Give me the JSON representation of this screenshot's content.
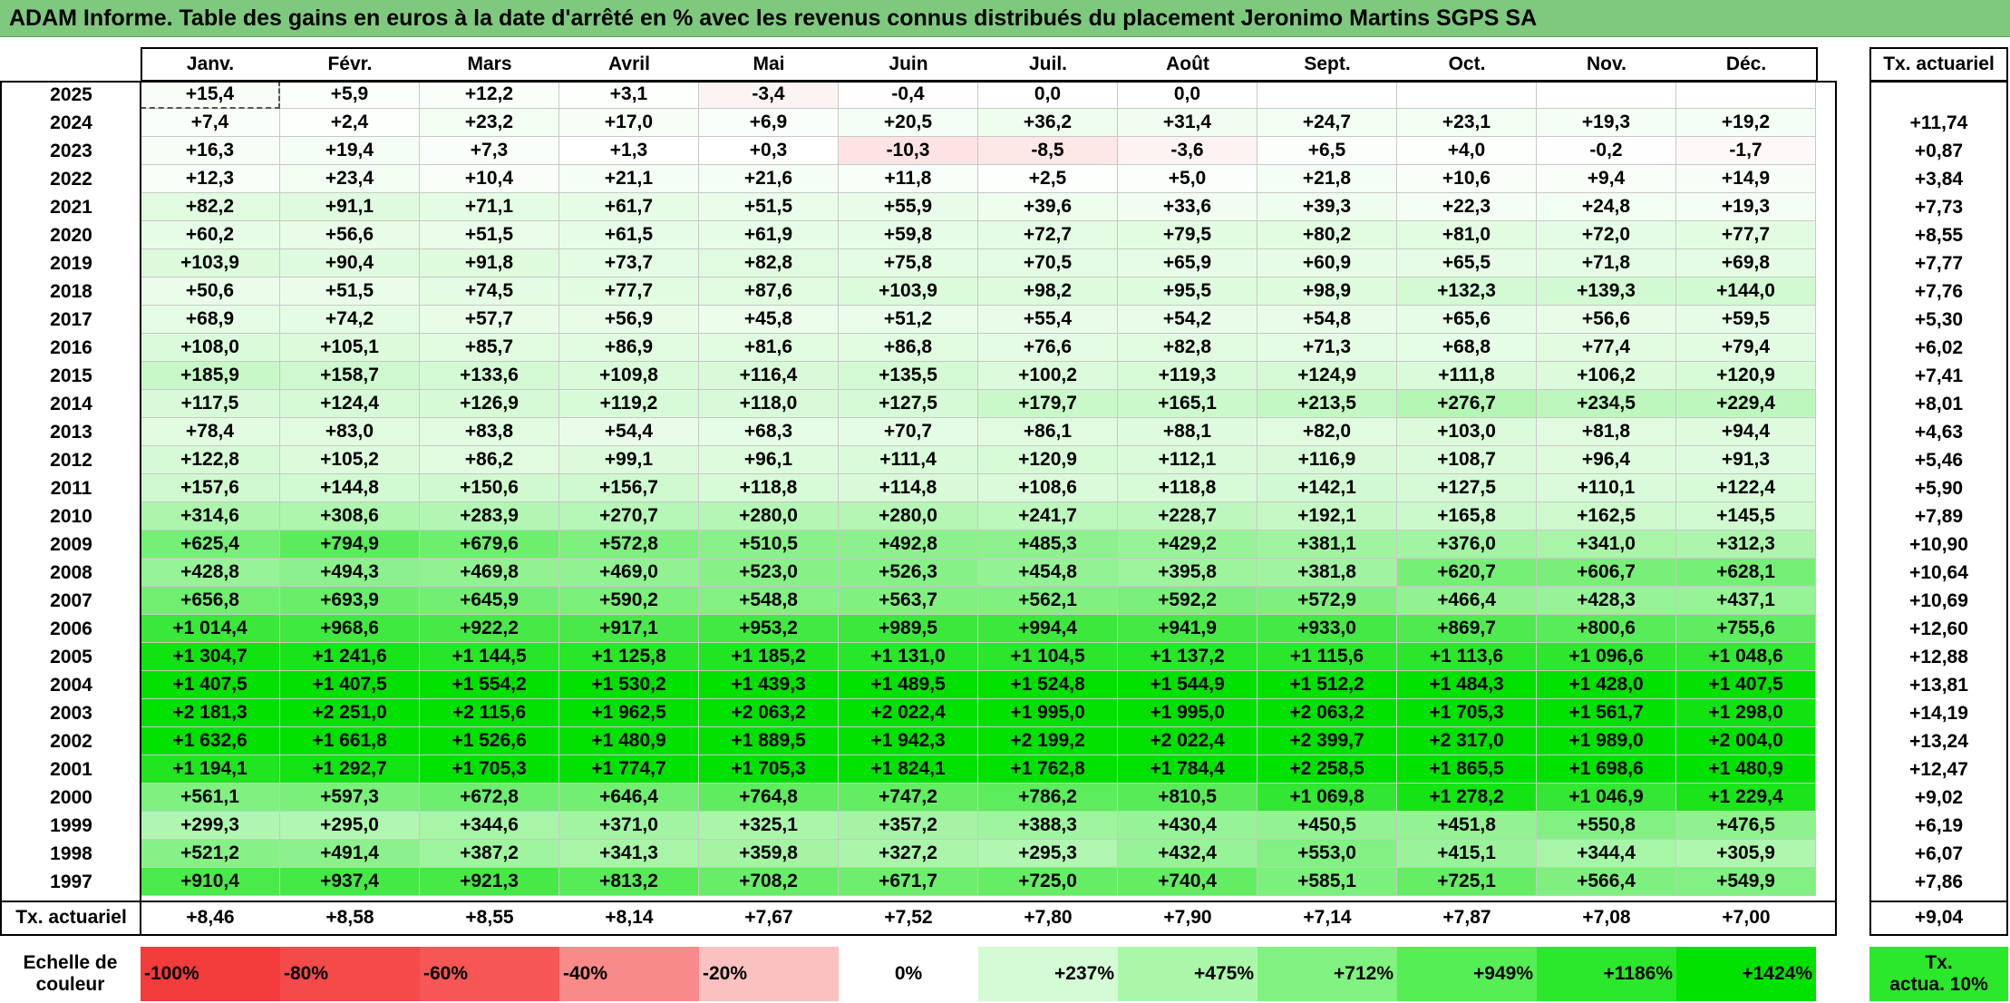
{
  "title": "ADAM Informe. Table des gains en euros à la date d'arrêté en % avec les revenus connus distribués du placement Jeronimo Martins SGPS SA",
  "chart_data": {
    "type": "table",
    "columns": [
      "Janv.",
      "Févr.",
      "Mars",
      "Avril",
      "Mai",
      "Juin",
      "Juil.",
      "Août",
      "Sept.",
      "Oct.",
      "Nov.",
      "Déc."
    ],
    "rate_header": "Tx. actuariel",
    "rows": [
      {
        "year": "2025",
        "values": [
          "+15,4",
          "+5,9",
          "+12,2",
          "+3,1",
          "-3,4",
          "-0,4",
          "0,0",
          "0,0",
          "",
          "",
          "",
          ""
        ],
        "rate": ""
      },
      {
        "year": "2024",
        "values": [
          "+7,4",
          "+2,4",
          "+23,2",
          "+17,0",
          "+6,9",
          "+20,5",
          "+36,2",
          "+31,4",
          "+24,7",
          "+23,1",
          "+19,3",
          "+19,2"
        ],
        "rate": "+11,74"
      },
      {
        "year": "2023",
        "values": [
          "+16,3",
          "+19,4",
          "+7,3",
          "+1,3",
          "+0,3",
          "-10,3",
          "-8,5",
          "-3,6",
          "+6,5",
          "+4,0",
          "-0,2",
          "-1,7"
        ],
        "rate": "+0,87"
      },
      {
        "year": "2022",
        "values": [
          "+12,3",
          "+23,4",
          "+10,4",
          "+21,1",
          "+21,6",
          "+11,8",
          "+2,5",
          "+5,0",
          "+21,8",
          "+10,6",
          "+9,4",
          "+14,9"
        ],
        "rate": "+3,84"
      },
      {
        "year": "2021",
        "values": [
          "+82,2",
          "+91,1",
          "+71,1",
          "+61,7",
          "+51,5",
          "+55,9",
          "+39,6",
          "+33,6",
          "+39,3",
          "+22,3",
          "+24,8",
          "+19,3"
        ],
        "rate": "+7,73"
      },
      {
        "year": "2020",
        "values": [
          "+60,2",
          "+56,6",
          "+51,5",
          "+61,5",
          "+61,9",
          "+59,8",
          "+72,7",
          "+79,5",
          "+80,2",
          "+81,0",
          "+72,0",
          "+77,7"
        ],
        "rate": "+8,55"
      },
      {
        "year": "2019",
        "values": [
          "+103,9",
          "+90,4",
          "+91,8",
          "+73,7",
          "+82,8",
          "+75,8",
          "+70,5",
          "+65,9",
          "+60,9",
          "+65,5",
          "+71,8",
          "+69,8"
        ],
        "rate": "+7,77"
      },
      {
        "year": "2018",
        "values": [
          "+50,6",
          "+51,5",
          "+74,5",
          "+77,7",
          "+87,6",
          "+103,9",
          "+98,2",
          "+95,5",
          "+98,9",
          "+132,3",
          "+139,3",
          "+144,0"
        ],
        "rate": "+7,76"
      },
      {
        "year": "2017",
        "values": [
          "+68,9",
          "+74,2",
          "+57,7",
          "+56,9",
          "+45,8",
          "+51,2",
          "+55,4",
          "+54,2",
          "+54,8",
          "+65,6",
          "+56,6",
          "+59,5"
        ],
        "rate": "+5,30"
      },
      {
        "year": "2016",
        "values": [
          "+108,0",
          "+105,1",
          "+85,7",
          "+86,9",
          "+81,6",
          "+86,8",
          "+76,6",
          "+82,8",
          "+71,3",
          "+68,8",
          "+77,4",
          "+79,4"
        ],
        "rate": "+6,02"
      },
      {
        "year": "2015",
        "values": [
          "+185,9",
          "+158,7",
          "+133,6",
          "+109,8",
          "+116,4",
          "+135,5",
          "+100,2",
          "+119,3",
          "+124,9",
          "+111,8",
          "+106,2",
          "+120,9"
        ],
        "rate": "+7,41"
      },
      {
        "year": "2014",
        "values": [
          "+117,5",
          "+124,4",
          "+126,9",
          "+119,2",
          "+118,0",
          "+127,5",
          "+179,7",
          "+165,1",
          "+213,5",
          "+276,7",
          "+234,5",
          "+229,4"
        ],
        "rate": "+8,01"
      },
      {
        "year": "2013",
        "values": [
          "+78,4",
          "+83,0",
          "+83,8",
          "+54,4",
          "+68,3",
          "+70,7",
          "+86,1",
          "+88,1",
          "+82,0",
          "+103,0",
          "+81,8",
          "+94,4"
        ],
        "rate": "+4,63"
      },
      {
        "year": "2012",
        "values": [
          "+122,8",
          "+105,2",
          "+86,2",
          "+99,1",
          "+96,1",
          "+111,4",
          "+120,9",
          "+112,1",
          "+116,9",
          "+108,7",
          "+96,4",
          "+91,3"
        ],
        "rate": "+5,46"
      },
      {
        "year": "2011",
        "values": [
          "+157,6",
          "+144,8",
          "+150,6",
          "+156,7",
          "+118,8",
          "+114,8",
          "+108,6",
          "+118,8",
          "+142,1",
          "+127,5",
          "+110,1",
          "+122,4"
        ],
        "rate": "+5,90"
      },
      {
        "year": "2010",
        "values": [
          "+314,6",
          "+308,6",
          "+283,9",
          "+270,7",
          "+280,0",
          "+280,0",
          "+241,7",
          "+228,7",
          "+192,1",
          "+165,8",
          "+162,5",
          "+145,5"
        ],
        "rate": "+7,89"
      },
      {
        "year": "2009",
        "values": [
          "+625,4",
          "+794,9",
          "+679,6",
          "+572,8",
          "+510,5",
          "+492,8",
          "+485,3",
          "+429,2",
          "+381,1",
          "+376,0",
          "+341,0",
          "+312,3"
        ],
        "rate": "+10,90"
      },
      {
        "year": "2008",
        "values": [
          "+428,8",
          "+494,3",
          "+469,8",
          "+469,0",
          "+523,0",
          "+526,3",
          "+454,8",
          "+395,8",
          "+381,8",
          "+620,7",
          "+606,7",
          "+628,1"
        ],
        "rate": "+10,64"
      },
      {
        "year": "2007",
        "values": [
          "+656,8",
          "+693,9",
          "+645,9",
          "+590,2",
          "+548,8",
          "+563,7",
          "+562,1",
          "+592,2",
          "+572,9",
          "+466,4",
          "+428,3",
          "+437,1"
        ],
        "rate": "+10,69"
      },
      {
        "year": "2006",
        "values": [
          "+1 014,4",
          "+968,6",
          "+922,2",
          "+917,1",
          "+953,2",
          "+989,5",
          "+994,4",
          "+941,9",
          "+933,0",
          "+869,7",
          "+800,6",
          "+755,6"
        ],
        "rate": "+12,60"
      },
      {
        "year": "2005",
        "values": [
          "+1 304,7",
          "+1 241,6",
          "+1 144,5",
          "+1 125,8",
          "+1 185,2",
          "+1 131,0",
          "+1 104,5",
          "+1 137,2",
          "+1 115,6",
          "+1 113,6",
          "+1 096,6",
          "+1 048,6"
        ],
        "rate": "+12,88"
      },
      {
        "year": "2004",
        "values": [
          "+1 407,5",
          "+1 407,5",
          "+1 554,2",
          "+1 530,2",
          "+1 439,3",
          "+1 489,5",
          "+1 524,8",
          "+1 544,9",
          "+1 512,2",
          "+1 484,3",
          "+1 428,0",
          "+1 407,5"
        ],
        "rate": "+13,81"
      },
      {
        "year": "2003",
        "values": [
          "+2 181,3",
          "+2 251,0",
          "+2 115,6",
          "+1 962,5",
          "+2 063,2",
          "+2 022,4",
          "+1 995,0",
          "+1 995,0",
          "+2 063,2",
          "+1 705,3",
          "+1 561,7",
          "+1 298,0"
        ],
        "rate": "+14,19"
      },
      {
        "year": "2002",
        "values": [
          "+1 632,6",
          "+1 661,8",
          "+1 526,6",
          "+1 480,9",
          "+1 889,5",
          "+1 942,3",
          "+2 199,2",
          "+2 022,4",
          "+2 399,7",
          "+2 317,0",
          "+1 989,0",
          "+2 004,0"
        ],
        "rate": "+13,24"
      },
      {
        "year": "2001",
        "values": [
          "+1 194,1",
          "+1 292,7",
          "+1 705,3",
          "+1 774,7",
          "+1 705,3",
          "+1 824,1",
          "+1 762,8",
          "+1 784,4",
          "+2 258,5",
          "+1 865,5",
          "+1 698,6",
          "+1 480,9"
        ],
        "rate": "+12,47"
      },
      {
        "year": "2000",
        "values": [
          "+561,1",
          "+597,3",
          "+672,8",
          "+646,4",
          "+764,8",
          "+747,2",
          "+786,2",
          "+810,5",
          "+1 069,8",
          "+1 278,2",
          "+1 046,9",
          "+1 229,4"
        ],
        "rate": "+9,02"
      },
      {
        "year": "1999",
        "values": [
          "+299,3",
          "+295,0",
          "+344,6",
          "+371,0",
          "+325,1",
          "+357,2",
          "+388,3",
          "+430,4",
          "+450,5",
          "+451,8",
          "+550,8",
          "+476,5"
        ],
        "rate": "+6,19"
      },
      {
        "year": "1998",
        "values": [
          "+521,2",
          "+491,4",
          "+387,2",
          "+341,3",
          "+359,8",
          "+327,2",
          "+295,3",
          "+432,4",
          "+553,0",
          "+415,1",
          "+344,4",
          "+305,9"
        ],
        "rate": "+6,07"
      },
      {
        "year": "1997",
        "values": [
          "+910,4",
          "+937,4",
          "+921,3",
          "+813,2",
          "+708,2",
          "+671,7",
          "+725,0",
          "+740,4",
          "+585,1",
          "+725,1",
          "+566,4",
          "+549,9"
        ],
        "rate": "+7,86"
      }
    ],
    "footer": {
      "label": "Tx. actuariel",
      "values": [
        "+8,46",
        "+8,58",
        "+8,55",
        "+8,14",
        "+7,67",
        "+7,52",
        "+7,80",
        "+7,90",
        "+7,14",
        "+7,87",
        "+7,08",
        "+7,00"
      ],
      "rate": "+9,04"
    },
    "scale": {
      "label_line1": "Echelle de",
      "label_line2": "couleur",
      "steps": [
        {
          "text": "-100%",
          "color": "#f23c3c",
          "align": "left"
        },
        {
          "text": "-80%",
          "color": "#f44a4a",
          "align": "left"
        },
        {
          "text": "-60%",
          "color": "#f65656",
          "align": "left"
        },
        {
          "text": "-40%",
          "color": "#f88a8a",
          "align": "left"
        },
        {
          "text": "-20%",
          "color": "#fbc0c0",
          "align": "left"
        },
        {
          "text": "0%",
          "color": "#ffffff",
          "align": "center"
        },
        {
          "text": "+237%",
          "color": "#d4fbd4",
          "align": "right"
        },
        {
          "text": "+475%",
          "color": "#aaf7aa",
          "align": "right"
        },
        {
          "text": "+712%",
          "color": "#80f280",
          "align": "right"
        },
        {
          "text": "+949%",
          "color": "#55ee55",
          "align": "right"
        },
        {
          "text": "+1186%",
          "color": "#2be82b",
          "align": "right"
        },
        {
          "text": "+1424%",
          "color": "#00e100",
          "align": "right"
        }
      ],
      "rate_line1": "Tx.",
      "rate_line2": "actua. 10%",
      "rate_color": "#2be82b"
    },
    "colors": {
      "title_bg": "#7ec97e",
      "max_green": "#00e100",
      "max_red": "#f23c3c"
    }
  }
}
